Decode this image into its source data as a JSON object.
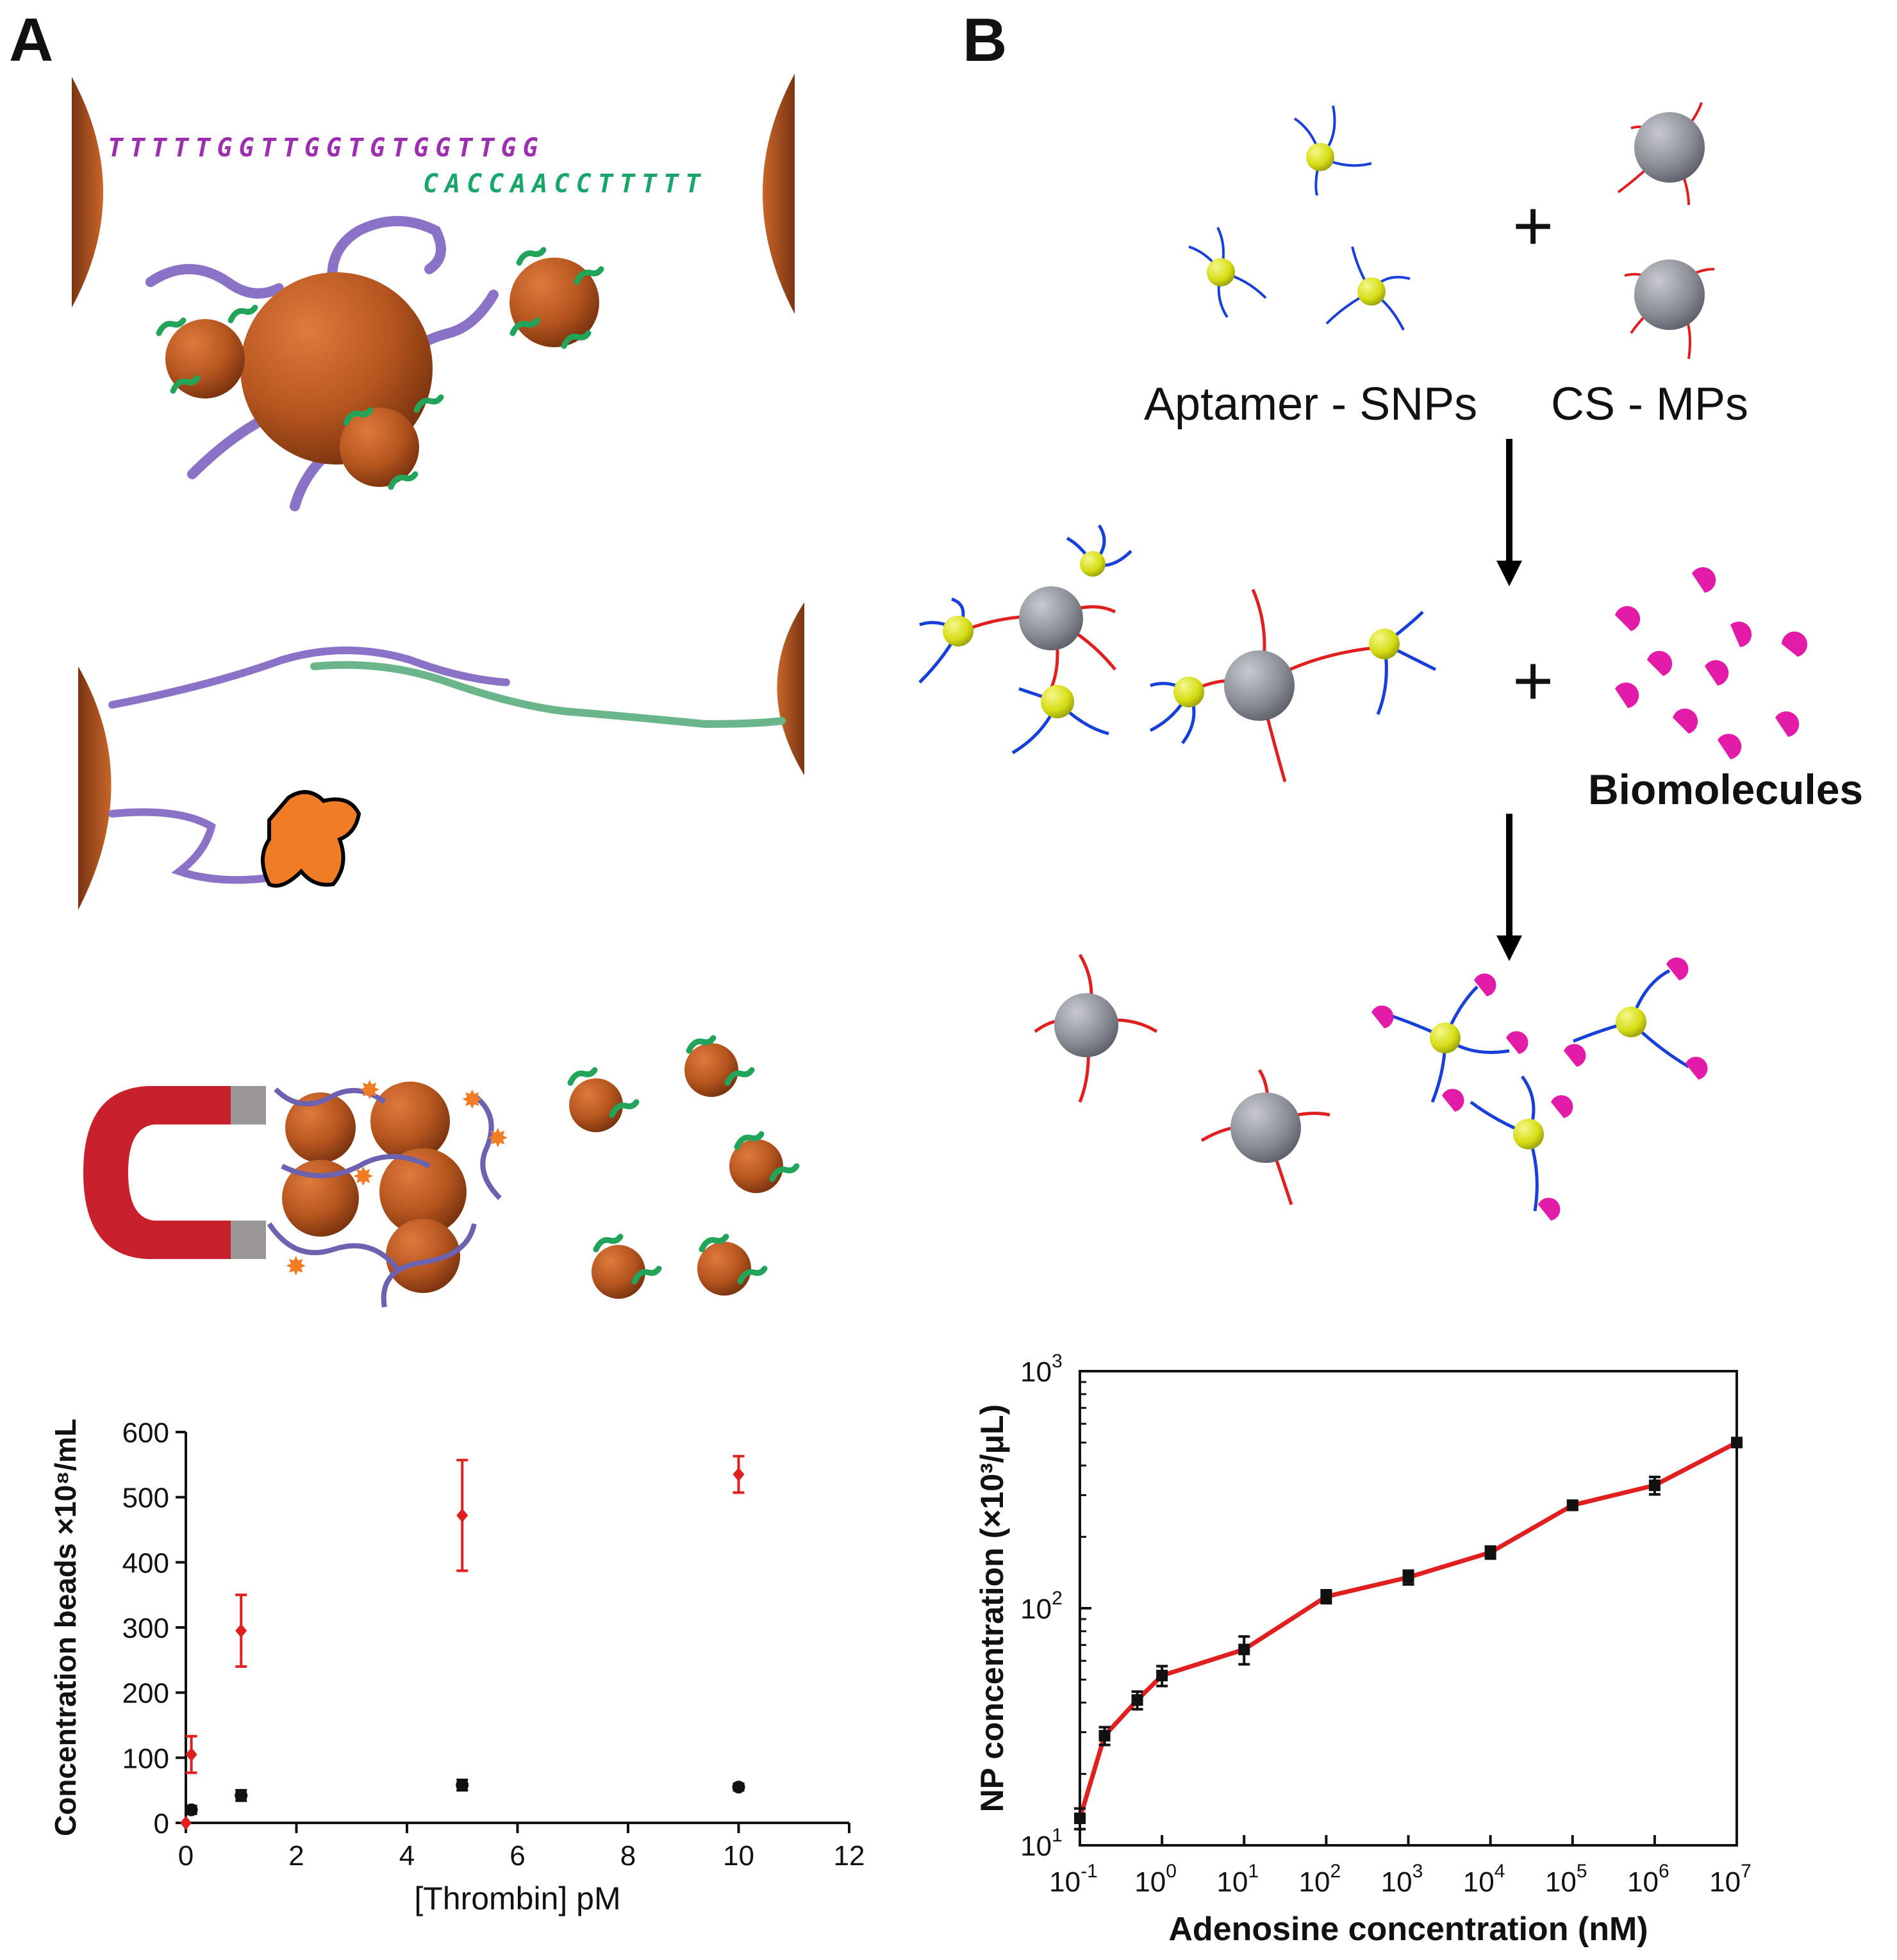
{
  "panel_a": {
    "label": "A",
    "seq_top": "TTTTTGGTTGGTGTGGTTGG",
    "seq_bottom": "CACCAACCTTTTT"
  },
  "panel_b": {
    "label": "B",
    "aptamer_label": "Aptamer - SNPs",
    "cs_label": "CS - MPs",
    "biomolecules_label": "Biomolecules",
    "plus_symbol": "+"
  },
  "colors": {
    "bead": "#b5551f",
    "linker_green": "#22a55a",
    "strand_purple": "#8a72c6",
    "target_orange": "#f07c26",
    "magnet_red": "#c8202c",
    "silver": "#8a8c95",
    "gold": "#d6dd14",
    "strand_blue": "#1840d8",
    "strand_red": "#e02020",
    "biomolecule": "#e21ca8",
    "plot_red": "#e02020",
    "seq_purple": "#9b2fae",
    "seq_green": "#1aa56b"
  },
  "chart_data": [
    {
      "type": "scatter",
      "xlabel": "[Thrombin] pM",
      "ylabel": "Concentration beads ×10⁸/mL",
      "xlim": [
        0,
        12
      ],
      "ylim": [
        0,
        600
      ],
      "xticks": [
        "0",
        "2",
        "4",
        "6",
        "8",
        "10",
        "12"
      ],
      "yticks": [
        "0",
        "100",
        "200",
        "300",
        "400",
        "500",
        "600"
      ],
      "series": [
        {
          "name": "red",
          "color": "#e02020",
          "points": [
            {
              "x": 0,
              "y": 0,
              "err": 0
            },
            {
              "x": 0.1,
              "y": 105,
              "err": 28
            },
            {
              "x": 1,
              "y": 295,
              "err": 55
            },
            {
              "x": 5,
              "y": 472,
              "err": 85
            },
            {
              "x": 10,
              "y": 535,
              "err": 28
            }
          ]
        },
        {
          "name": "black",
          "color": "#111111",
          "points": [
            {
              "x": 0.1,
              "y": 20,
              "err": 6
            },
            {
              "x": 1,
              "y": 42,
              "err": 8
            },
            {
              "x": 5,
              "y": 58,
              "err": 8
            },
            {
              "x": 10,
              "y": 55,
              "err": 5
            }
          ]
        }
      ]
    },
    {
      "type": "line",
      "xscale": "log",
      "yscale": "log",
      "xlabel": "Adenosine concentration (nM)",
      "ylabel": "NP concentration (×10³/μL)",
      "xlim": [
        0.1,
        10000000
      ],
      "ylim": [
        10,
        1000
      ],
      "xticks_exp": [
        "-1",
        "0",
        "1",
        "2",
        "3",
        "4",
        "5",
        "6",
        "7"
      ],
      "yticks_exp": [
        "1",
        "2",
        "3"
      ],
      "tick_base": "10",
      "line_color": "#e02020",
      "points": [
        {
          "x": 0.1,
          "y": 13,
          "err": 1.3
        },
        {
          "x": 0.2,
          "y": 29,
          "err": 2.5
        },
        {
          "x": 0.5,
          "y": 41,
          "err": 3.5
        },
        {
          "x": 1,
          "y": 52,
          "err": 5
        },
        {
          "x": 10,
          "y": 67,
          "err": 9
        },
        {
          "x": 100,
          "y": 112,
          "err": 7
        },
        {
          "x": 1000,
          "y": 135,
          "err": 9
        },
        {
          "x": 10000,
          "y": 172,
          "err": 10
        },
        {
          "x": 100000,
          "y": 272,
          "err": 12
        },
        {
          "x": 1000000,
          "y": 330,
          "err": 28
        },
        {
          "x": 10000000,
          "y": 500,
          "err": 20
        }
      ]
    }
  ]
}
